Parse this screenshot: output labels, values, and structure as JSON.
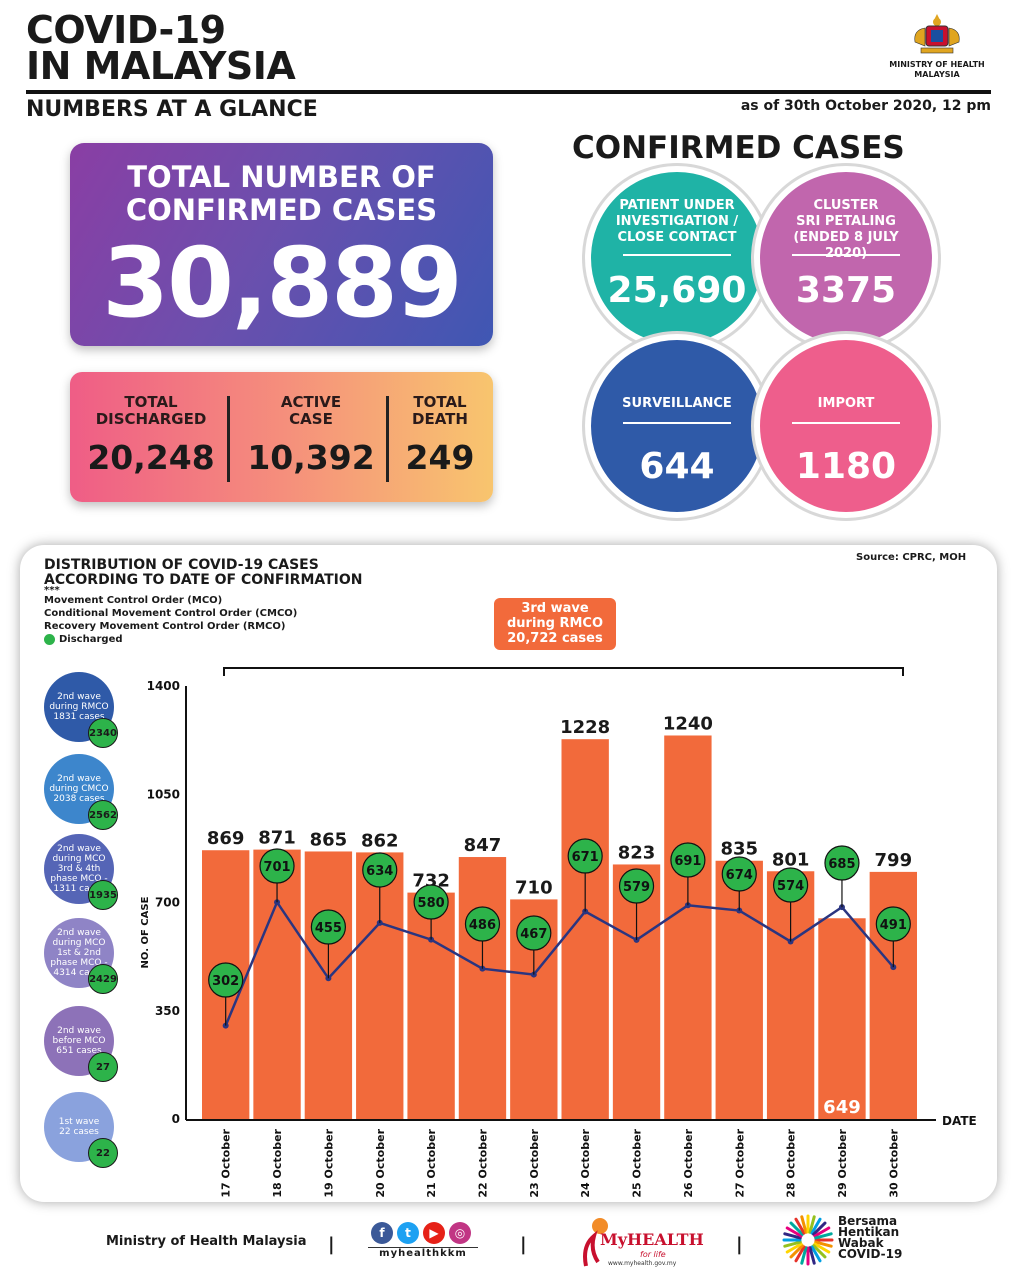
{
  "header": {
    "title": "COVID-19\nIN MALAYSIA",
    "subtitle": "NUMBERS AT A GLANCE",
    "as_of": "as of 30th October 2020, 12 pm",
    "ministry": "MINISTRY OF HEALTH\nMALAYSIA"
  },
  "total": {
    "label": "TOTAL NUMBER OF\nCONFIRMED CASES",
    "value": "30,889"
  },
  "stats": [
    {
      "label": "TOTAL\nDISCHARGED",
      "value": "20,248"
    },
    {
      "label": "ACTIVE\nCASE",
      "value": "10,392"
    },
    {
      "label": "TOTAL\nDEATH",
      "value": "249"
    }
  ],
  "confirmed_cases": {
    "heading": "CONFIRMED CASES",
    "items": [
      {
        "label": "PATIENT UNDER\nINVESTIGATION /\nCLOSE CONTACT",
        "value": "25,690",
        "color": "#1fb3a6"
      },
      {
        "label": "CLUSTER\nSRI PETALING\n(ENDED 8 JULY 2020)",
        "value": "3375",
        "color": "#c166ad"
      },
      {
        "label": "SURVEILLANCE",
        "value": "644",
        "color": "#2f5aa8"
      },
      {
        "label": "IMPORT",
        "value": "1180",
        "color": "#ee5e8c"
      }
    ]
  },
  "distribution": {
    "title": "DISTRIBUTION OF COVID-19 CASES\nACCORDING TO DATE OF CONFIRMATION",
    "source": "Source: CPRC, MOH",
    "legend_marker": "***",
    "legend": [
      "Movement Control Order (MCO)",
      "Conditional Movement Control Order (CMCO)",
      "Recovery Movement Control Order (RMCO)"
    ],
    "discharged_label": "Discharged",
    "third_wave": "3rd wave\nduring RMCO\n20,722 cases",
    "waves": [
      {
        "label": "2nd wave\nduring RMCO\n1831 cases",
        "discharged": "2340",
        "color": "#2f5aa8"
      },
      {
        "label": "2nd wave\nduring CMCO\n2038 cases",
        "discharged": "2562",
        "color": "#3d86cc"
      },
      {
        "label": "2nd wave\nduring MCO\n3rd & 4th\nphase MCO -\n1311 cases",
        "discharged": "1935",
        "color": "#5565b6"
      },
      {
        "label": "2nd wave\nduring MCO\n1st & 2nd\nphase MCO -\n4314 cases",
        "discharged": "2429",
        "color": "#8f84c6"
      },
      {
        "label": "2nd wave\nbefore MCO\n651 cases",
        "discharged": "27",
        "color": "#8d72b8"
      },
      {
        "label": "1st wave\n22 cases",
        "discharged": "22",
        "color": "#8aa2dd"
      }
    ]
  },
  "chart_data": {
    "type": "bar",
    "categories": [
      "17 October",
      "18 October",
      "19 October",
      "20 October",
      "21 October",
      "22 October",
      "23 October",
      "24 October",
      "25 October",
      "26 October",
      "27 October",
      "28 October",
      "29 October",
      "30 October"
    ],
    "series": [
      {
        "name": "",
        "type": "bar",
        "values": [
          869,
          871,
          865,
          862,
          732,
          847,
          710,
          1228,
          823,
          1240,
          835,
          801,
          649,
          799
        ],
        "color": "#f26a3b"
      },
      {
        "name": "Discharged",
        "type": "line",
        "values": [
          302,
          701,
          455,
          634,
          580,
          486,
          467,
          671,
          579,
          691,
          674,
          574,
          685,
          491
        ],
        "color": "#2a3580"
      }
    ],
    "xlabel": "DATE",
    "ylabel": "NO. OF CASE",
    "yticks": [
      0,
      350,
      700,
      1050,
      1400
    ],
    "ylim": [
      0,
      1400
    ]
  },
  "footer": {
    "ministry": "Ministry of Health Malaysia",
    "social_handle": "myhealthkkm",
    "myhealth": "MyHEALTH",
    "myhealth_tag": "for life",
    "myhealth_url": "www.myhealth.gov.my",
    "campaign": "Bersama\nHentikan\nWabak\nCOVID-19"
  }
}
